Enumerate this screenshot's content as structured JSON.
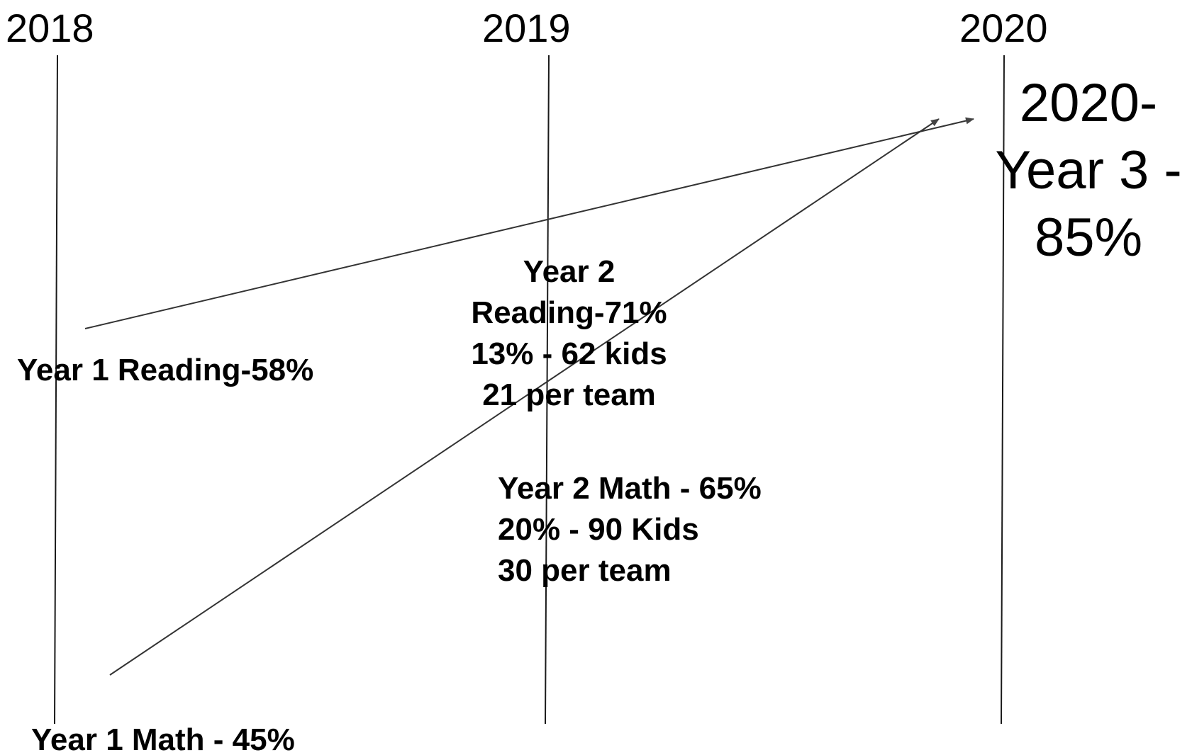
{
  "timeline": {
    "years": [
      "2018",
      "2019",
      "2020"
    ]
  },
  "notes": {
    "year1_reading": "Year 1 Reading-58%",
    "year1_math": "Year 1 Math - 45%",
    "year2_reading": [
      "Year 2",
      "Reading-71%",
      "13% - 62 kids",
      "21 per team"
    ],
    "year2_math": [
      "Year 2 Math - 65%",
      "20% - 90 Kids",
      "30 per team"
    ],
    "target": [
      "2020-",
      "Year 3 -",
      "85%"
    ]
  },
  "colors": {
    "line": "#1a1a1a",
    "arrow": "#444444",
    "text": "#000000",
    "background": "#ffffff"
  }
}
